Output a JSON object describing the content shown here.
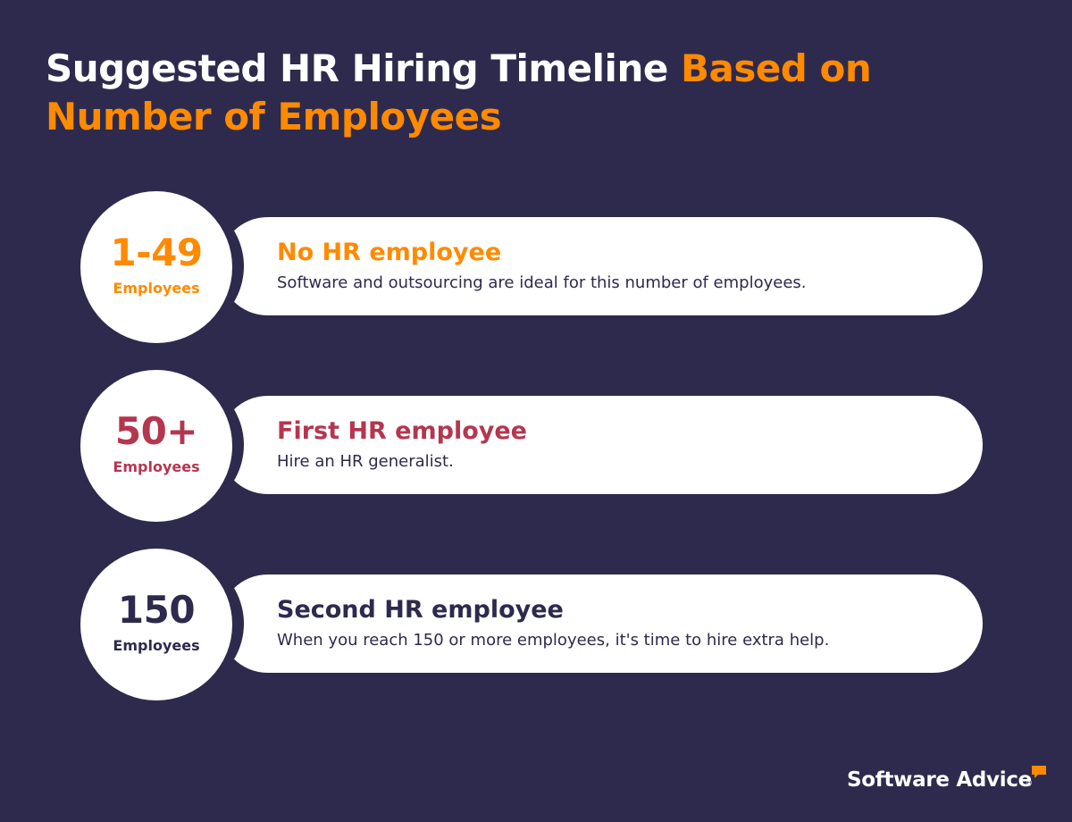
{
  "title": {
    "part1": "Suggested HR Hiring Timeline ",
    "part2": "Based on",
    "part3": "Number of Employees"
  },
  "rows": [
    {
      "number": "1-49",
      "unit": "Employees",
      "heading": "No HR employee",
      "description": "Software and outsourcing are ideal for this number of employees.",
      "color": "#ff8a00"
    },
    {
      "number": "50+",
      "unit": "Employees",
      "heading": "First HR employee",
      "description": "Hire an HR generalist.",
      "color": "#b5364f"
    },
    {
      "number": "150",
      "unit": "Employees",
      "heading": "Second HR employee",
      "description": "When you reach 150 or more employees, it's time to hire extra help.",
      "color": "#2d2a4d"
    }
  ],
  "logo": {
    "text": "Software Advice",
    "reg": "®",
    "bubble_color": "#ff8a00"
  },
  "colors": {
    "background": "#2d2a4d",
    "accent": "#ff8a00",
    "card": "#ffffff"
  }
}
